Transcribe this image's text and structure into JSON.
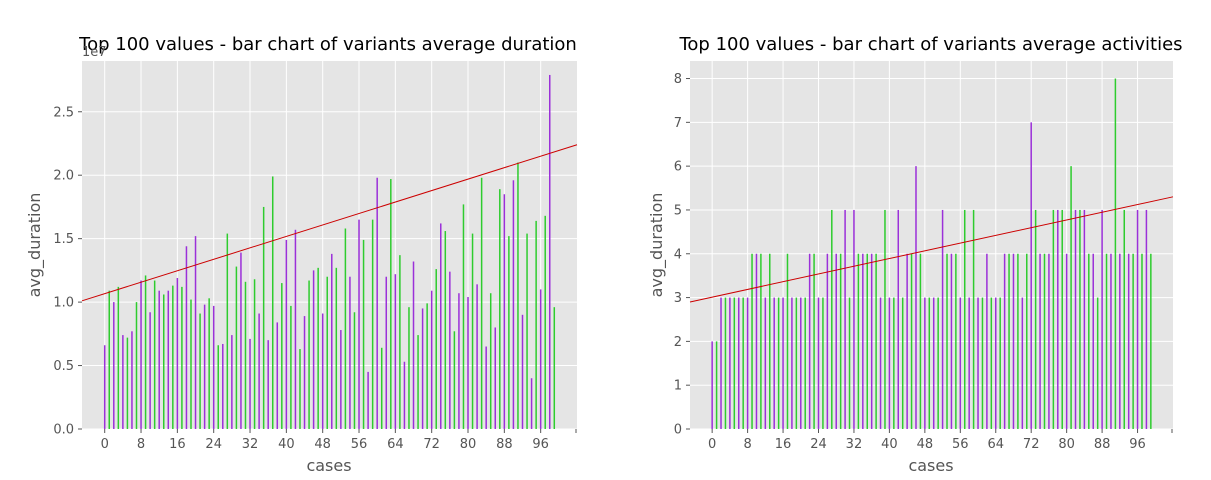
{
  "chart_data": [
    {
      "type": "bar",
      "title": "Top 100 values - bar chart of variants average duration",
      "xlabel": "cases",
      "ylabel": "avg_duration",
      "y_offset_label": "1e7",
      "ylim": [
        0,
        29000000
      ],
      "xlim": [
        -5,
        104
      ],
      "grid": true,
      "x_ticks": [
        0,
        8,
        16,
        24,
        32,
        40,
        48,
        56,
        64,
        72,
        80,
        88,
        96
      ],
      "x_tick_labels": [
        "0",
        "8",
        "16",
        "24",
        "32",
        "40",
        "48",
        "56",
        "64",
        "72",
        "80",
        "88",
        "96"
      ],
      "y_ticks": [
        0,
        5000000,
        10000000,
        15000000,
        20000000,
        25000000
      ],
      "y_tick_labels": [
        "0.0",
        "0.5",
        "1.0",
        "1.5",
        "2.0",
        "2.5"
      ],
      "bar_colors": [
        "#9B30D9",
        "#2ECC2E"
      ],
      "trend_color": "#cc0000",
      "trend_line": {
        "x": [
          -5,
          104
        ],
        "y": [
          10100000,
          22400000
        ]
      },
      "x": [
        0,
        1,
        2,
        3,
        4,
        5,
        6,
        7,
        8,
        9,
        10,
        11,
        12,
        13,
        14,
        15,
        16,
        17,
        18,
        19,
        20,
        21,
        22,
        23,
        24,
        25,
        26,
        27,
        28,
        29,
        30,
        31,
        32,
        33,
        34,
        35,
        36,
        37,
        38,
        39,
        40,
        41,
        42,
        43,
        44,
        45,
        46,
        47,
        48,
        49,
        50,
        51,
        52,
        53,
        54,
        55,
        56,
        57,
        58,
        59,
        60,
        61,
        62,
        63,
        64,
        65,
        66,
        67,
        68,
        69,
        70,
        71,
        72,
        73,
        74,
        75,
        76,
        77,
        78,
        79,
        80,
        81,
        82,
        83,
        84,
        85,
        86,
        87,
        88,
        89,
        90,
        91,
        92,
        93,
        94,
        95,
        96,
        97,
        98,
        99
      ],
      "values": [
        6600000,
        10900000,
        10000000,
        11200000,
        7400000,
        7200000,
        7700000,
        10000000,
        11700000,
        12100000,
        9200000,
        11700000,
        10900000,
        10600000,
        10900000,
        11300000,
        11900000,
        11200000,
        14400000,
        10200000,
        15200000,
        9100000,
        9800000,
        10300000,
        9700000,
        6600000,
        6700000,
        15400000,
        7400000,
        12800000,
        13900000,
        11600000,
        7100000,
        11800000,
        9100000,
        17500000,
        7000000,
        19900000,
        8400000,
        11500000,
        14900000,
        9700000,
        15700000,
        6300000,
        8900000,
        11700000,
        12500000,
        12700000,
        9100000,
        12000000,
        13800000,
        12700000,
        7800000,
        15800000,
        12000000,
        9200000,
        16500000,
        14900000,
        4500000,
        16500000,
        19800000,
        6400000,
        12000000,
        19700000,
        12200000,
        13700000,
        5300000,
        9600000,
        13200000,
        7400000,
        9500000,
        9900000,
        10900000,
        12600000,
        16200000,
        15600000,
        12400000,
        7700000,
        10700000,
        17700000,
        10400000,
        15400000,
        11400000,
        19800000,
        6500000,
        10700000,
        8000000,
        18900000,
        18500000,
        15200000,
        19600000,
        21000000,
        9000000,
        15400000,
        4000000,
        16400000,
        11000000,
        16800000,
        27900000,
        9600000
      ]
    },
    {
      "type": "bar",
      "title": "Top 100 values - bar chart of variants average activities",
      "xlabel": "cases",
      "ylabel": "avg_duration",
      "ylim": [
        0,
        8.4
      ],
      "xlim": [
        -5,
        104
      ],
      "grid": true,
      "x_ticks": [
        0,
        8,
        16,
        24,
        32,
        40,
        48,
        56,
        64,
        72,
        80,
        88,
        96
      ],
      "x_tick_labels": [
        "0",
        "8",
        "16",
        "24",
        "32",
        "40",
        "48",
        "56",
        "64",
        "72",
        "80",
        "88",
        "96"
      ],
      "y_ticks": [
        0,
        1,
        2,
        3,
        4,
        5,
        6,
        7,
        8
      ],
      "y_tick_labels": [
        "0",
        "1",
        "2",
        "3",
        "4",
        "5",
        "6",
        "7",
        "8"
      ],
      "bar_colors": [
        "#9B30D9",
        "#2ECC2E"
      ],
      "trend_color": "#cc0000",
      "trend_line": {
        "x": [
          -5,
          104
        ],
        "y": [
          2.9,
          5.3
        ]
      },
      "x": [
        0,
        1,
        2,
        3,
        4,
        5,
        6,
        7,
        8,
        9,
        10,
        11,
        12,
        13,
        14,
        15,
        16,
        17,
        18,
        19,
        20,
        21,
        22,
        23,
        24,
        25,
        26,
        27,
        28,
        29,
        30,
        31,
        32,
        33,
        34,
        35,
        36,
        37,
        38,
        39,
        40,
        41,
        42,
        43,
        44,
        45,
        46,
        47,
        48,
        49,
        50,
        51,
        52,
        53,
        54,
        55,
        56,
        57,
        58,
        59,
        60,
        61,
        62,
        63,
        64,
        65,
        66,
        67,
        68,
        69,
        70,
        71,
        72,
        73,
        74,
        75,
        76,
        77,
        78,
        79,
        80,
        81,
        82,
        83,
        84,
        85,
        86,
        87,
        88,
        89,
        90,
        91,
        92,
        93,
        94,
        95,
        96,
        97,
        98,
        99
      ],
      "values": [
        2,
        2,
        3,
        3,
        3,
        3,
        3,
        3,
        3,
        4,
        4,
        4,
        3,
        4,
        3,
        3,
        3,
        4,
        3,
        3,
        3,
        3,
        4,
        4,
        3,
        3,
        4,
        5,
        4,
        4,
        5,
        3,
        5,
        4,
        4,
        4,
        4,
        4,
        3,
        5,
        3,
        3,
        5,
        3,
        4,
        4,
        6,
        4,
        3,
        3,
        3,
        3,
        5,
        4,
        4,
        4,
        3,
        5,
        3,
        5,
        3,
        3,
        4,
        3,
        3,
        3,
        4,
        4,
        4,
        4,
        3,
        4,
        7,
        5,
        4,
        4,
        4,
        5,
        5,
        5,
        4,
        6,
        5,
        5,
        5,
        4,
        4,
        3,
        5,
        4,
        4,
        8,
        4,
        5,
        4,
        4,
        5,
        4,
        5,
        4
      ]
    }
  ]
}
